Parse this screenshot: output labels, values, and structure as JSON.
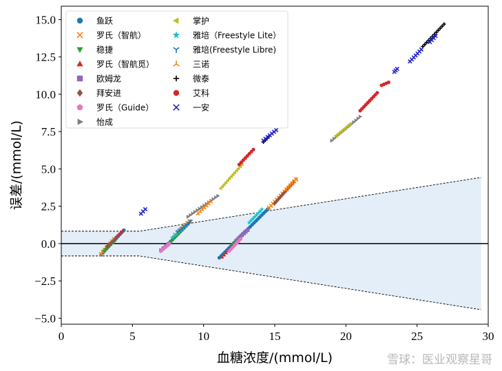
{
  "chart_data": {
    "type": "scatter",
    "xlabel": "血糖浓度/(mmol/L)",
    "ylabel": "误差/(mmol/L)",
    "xlim": [
      0,
      30
    ],
    "ylim": [
      -5.4,
      15.9
    ],
    "xticks": [
      "0",
      "5",
      "10",
      "15",
      "20",
      "25",
      "30"
    ],
    "yticks": [
      "−5.0",
      "−2.5",
      "0.0",
      "2.5",
      "5.0",
      "7.5",
      "10.0",
      "12.5",
      "15.0"
    ],
    "xtick_values": [
      0,
      5,
      10,
      15,
      20,
      25,
      30
    ],
    "ytick_values": [
      -5,
      -2.5,
      0,
      2.5,
      5,
      7.5,
      10,
      12.5,
      15
    ],
    "grid": false,
    "legend_position": "top-left",
    "zero_line": 0,
    "tolerance_band": {
      "upper": [
        [
          0,
          0.83
        ],
        [
          5.5,
          0.83
        ],
        [
          29.5,
          4.43
        ]
      ],
      "lower": [
        [
          0,
          -0.83
        ],
        [
          5.5,
          -0.83
        ],
        [
          29.5,
          -4.43
        ]
      ],
      "fill_color": "#e3eef8"
    },
    "series": [
      {
        "name": "鱼跃",
        "marker": "circle",
        "color": "#1f77b4",
        "segments": [
          [
            2.8,
            4.4,
            -0.75,
            0.9
          ],
          [
            7.0,
            8.9,
            -0.5,
            1.3
          ],
          [
            11.1,
            14.5,
            -0.95,
            2.3
          ]
        ]
      },
      {
        "name": "罗氏（智航）",
        "marker": "x",
        "color": "#ff7f0e",
        "segments": [
          [
            2.8,
            3.7,
            -0.7,
            0.3
          ],
          [
            8.0,
            9.0,
            0.6,
            1.5
          ],
          [
            14.6,
            16.5,
            2.4,
            4.3
          ]
        ]
      },
      {
        "name": "稳捷",
        "marker": "triangle-down",
        "color": "#2ca02c",
        "segments": [
          [
            3.0,
            3.8,
            -0.5,
            0.2
          ],
          [
            7.6,
            8.6,
            0.0,
            1.0
          ],
          [
            12.0,
            12.9,
            -0.1,
            0.8
          ]
        ]
      },
      {
        "name": "罗氏（智航觅）",
        "marker": "triangle-up",
        "color": "#d62728",
        "segments": [
          [
            3.8,
            4.3,
            0.4,
            0.85
          ],
          [
            11.3,
            12.0,
            -0.9,
            -0.2
          ]
        ]
      },
      {
        "name": "欧姆龙",
        "marker": "square",
        "color": "#9467bd",
        "segments": [
          [
            7.0,
            7.5,
            -0.45,
            -0.05
          ],
          [
            12.3,
            13.1,
            0.2,
            0.9
          ]
        ]
      },
      {
        "name": "拜安进",
        "marker": "diamond",
        "color": "#8c564b",
        "segments": [
          [
            3.2,
            3.9,
            -0.2,
            0.4
          ],
          [
            15.0,
            16.3,
            2.7,
            4.1
          ]
        ]
      },
      {
        "name": "罗氏（Guide）",
        "marker": "pentagon",
        "color": "#e377c2",
        "segments": [
          [
            7.0,
            7.6,
            -0.5,
            0.0
          ],
          [
            11.8,
            12.6,
            -0.5,
            0.3
          ]
        ]
      },
      {
        "name": "怡成",
        "marker": "triangle-right",
        "color": "#7f7f7f",
        "segments": [
          [
            8.9,
            11.0,
            1.8,
            3.2
          ],
          [
            19.0,
            21.0,
            6.9,
            8.5
          ]
        ]
      },
      {
        "name": "掌护",
        "marker": "triangle-left",
        "color": "#bcbd22",
        "segments": [
          [
            11.2,
            12.7,
            3.7,
            5.3
          ],
          [
            19.3,
            20.3,
            7.2,
            8.0
          ]
        ]
      },
      {
        "name": "雅培（Freestyle Lite）",
        "marker": "star",
        "color": "#17becf",
        "segments": [
          [
            7.8,
            8.8,
            0.4,
            1.2
          ],
          [
            13.2,
            14.1,
            1.4,
            2.3
          ]
        ]
      },
      {
        "name": "雅培(Freestyle Libre)",
        "marker": "tri-down",
        "color": "#1f77b4",
        "segments": [
          [
            8.2,
            9.1,
            0.8,
            1.5
          ]
        ]
      },
      {
        "name": "三诺",
        "marker": "tri-up",
        "color": "#ff7f0e",
        "segments": [
          [
            9.6,
            10.5,
            2.0,
            2.8
          ],
          [
            15.8,
            16.5,
            3.6,
            4.3
          ]
        ]
      },
      {
        "name": "微泰",
        "marker": "plus",
        "color": "#000000",
        "segments": [
          [
            14.2,
            14.6,
            6.8,
            7.2
          ],
          [
            25.4,
            26.9,
            13.2,
            14.7
          ]
        ]
      },
      {
        "name": "艾科",
        "marker": "circle",
        "color": "#d62728",
        "segments": [
          [
            12.5,
            13.5,
            5.3,
            6.3
          ],
          [
            21.0,
            22.2,
            8.9,
            10.1
          ],
          [
            22.5,
            23.0,
            10.6,
            10.8
          ]
        ]
      },
      {
        "name": "一安",
        "marker": "x",
        "color": "#2222cc",
        "segments": [
          [
            5.6,
            5.9,
            2.0,
            2.3
          ],
          [
            14.2,
            15.1,
            6.9,
            7.6
          ],
          [
            23.4,
            23.6,
            11.5,
            11.7
          ],
          [
            24.5,
            25.3,
            12.2,
            13.0
          ],
          [
            25.9,
            26.3,
            13.5,
            13.9
          ]
        ]
      }
    ]
  },
  "watermark": "雪球：医业观察星哥"
}
